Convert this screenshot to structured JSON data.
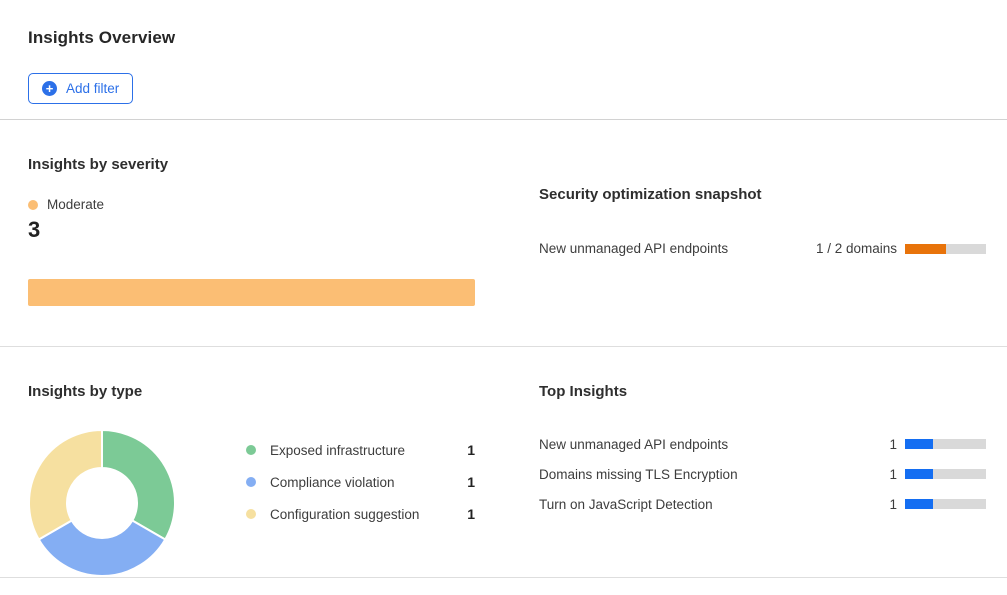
{
  "page": {
    "title": "Insights Overview"
  },
  "toolbar": {
    "add_filter_label": "Add filter",
    "plus_glyph": "+"
  },
  "colors": {
    "accent_blue": "#2c70e8",
    "bar_blue": "#146ef2",
    "severity_orange": "#fbbe74",
    "progress_orange": "#e8730a",
    "track_gray": "#d9d9d9",
    "pie_green": "#7cca96",
    "pie_blue": "#84aef3",
    "pie_yellow": "#f6e0a0"
  },
  "severity": {
    "heading": "Insights by severity",
    "legend_label": "Moderate",
    "count": "3",
    "bar_pct": 100,
    "bar_color": "#fbbe74"
  },
  "snapshot": {
    "heading": "Security optimization snapshot",
    "rows": [
      {
        "label": "New unmanaged API endpoints",
        "value_text": "1 / 2 domains",
        "progress_pct": 50,
        "fill_color": "#e8730a"
      }
    ]
  },
  "by_type": {
    "heading": "Insights by type",
    "items": [
      {
        "label": "Exposed infrastructure",
        "count": "1",
        "color": "#7cca96"
      },
      {
        "label": "Compliance violation",
        "count": "1",
        "color": "#84aef3"
      },
      {
        "label": "Configuration suggestion",
        "count": "1",
        "color": "#f6e0a0"
      }
    ]
  },
  "top_insights": {
    "heading": "Top Insights",
    "rows": [
      {
        "label": "New unmanaged API endpoints",
        "count": "1",
        "progress_pct": 35
      },
      {
        "label": "Domains missing TLS Encryption",
        "count": "1",
        "progress_pct": 35
      },
      {
        "label": "Turn on JavaScript Detection",
        "count": "1",
        "progress_pct": 35
      }
    ],
    "bar_color": "#146ef2"
  },
  "chart_data": [
    {
      "type": "bar",
      "title": "Insights by severity",
      "categories": [
        "Moderate"
      ],
      "values": [
        3
      ],
      "colors": [
        "#fbbe74"
      ],
      "orientation": "horizontal",
      "legend_position": "top"
    },
    {
      "type": "bar",
      "title": "Security optimization snapshot",
      "categories": [
        "New unmanaged API endpoints"
      ],
      "values": [
        1
      ],
      "max": 2,
      "value_labels": [
        "1 / 2 domains"
      ],
      "colors": [
        "#e8730a"
      ],
      "orientation": "horizontal"
    },
    {
      "type": "pie",
      "title": "Insights by type",
      "categories": [
        "Exposed infrastructure",
        "Compliance violation",
        "Configuration suggestion"
      ],
      "values": [
        1,
        1,
        1
      ],
      "colors": [
        "#7cca96",
        "#84aef3",
        "#f6e0a0"
      ],
      "donut": true,
      "start_angle_deg": 0,
      "legend_position": "right"
    },
    {
      "type": "bar",
      "title": "Top Insights",
      "categories": [
        "New unmanaged API endpoints",
        "Domains missing TLS Encryption",
        "Turn on JavaScript Detection"
      ],
      "values": [
        1,
        1,
        1
      ],
      "value_labels": [
        "1",
        "1",
        "1"
      ],
      "colors": [
        "#146ef2",
        "#146ef2",
        "#146ef2"
      ],
      "orientation": "horizontal"
    }
  ]
}
